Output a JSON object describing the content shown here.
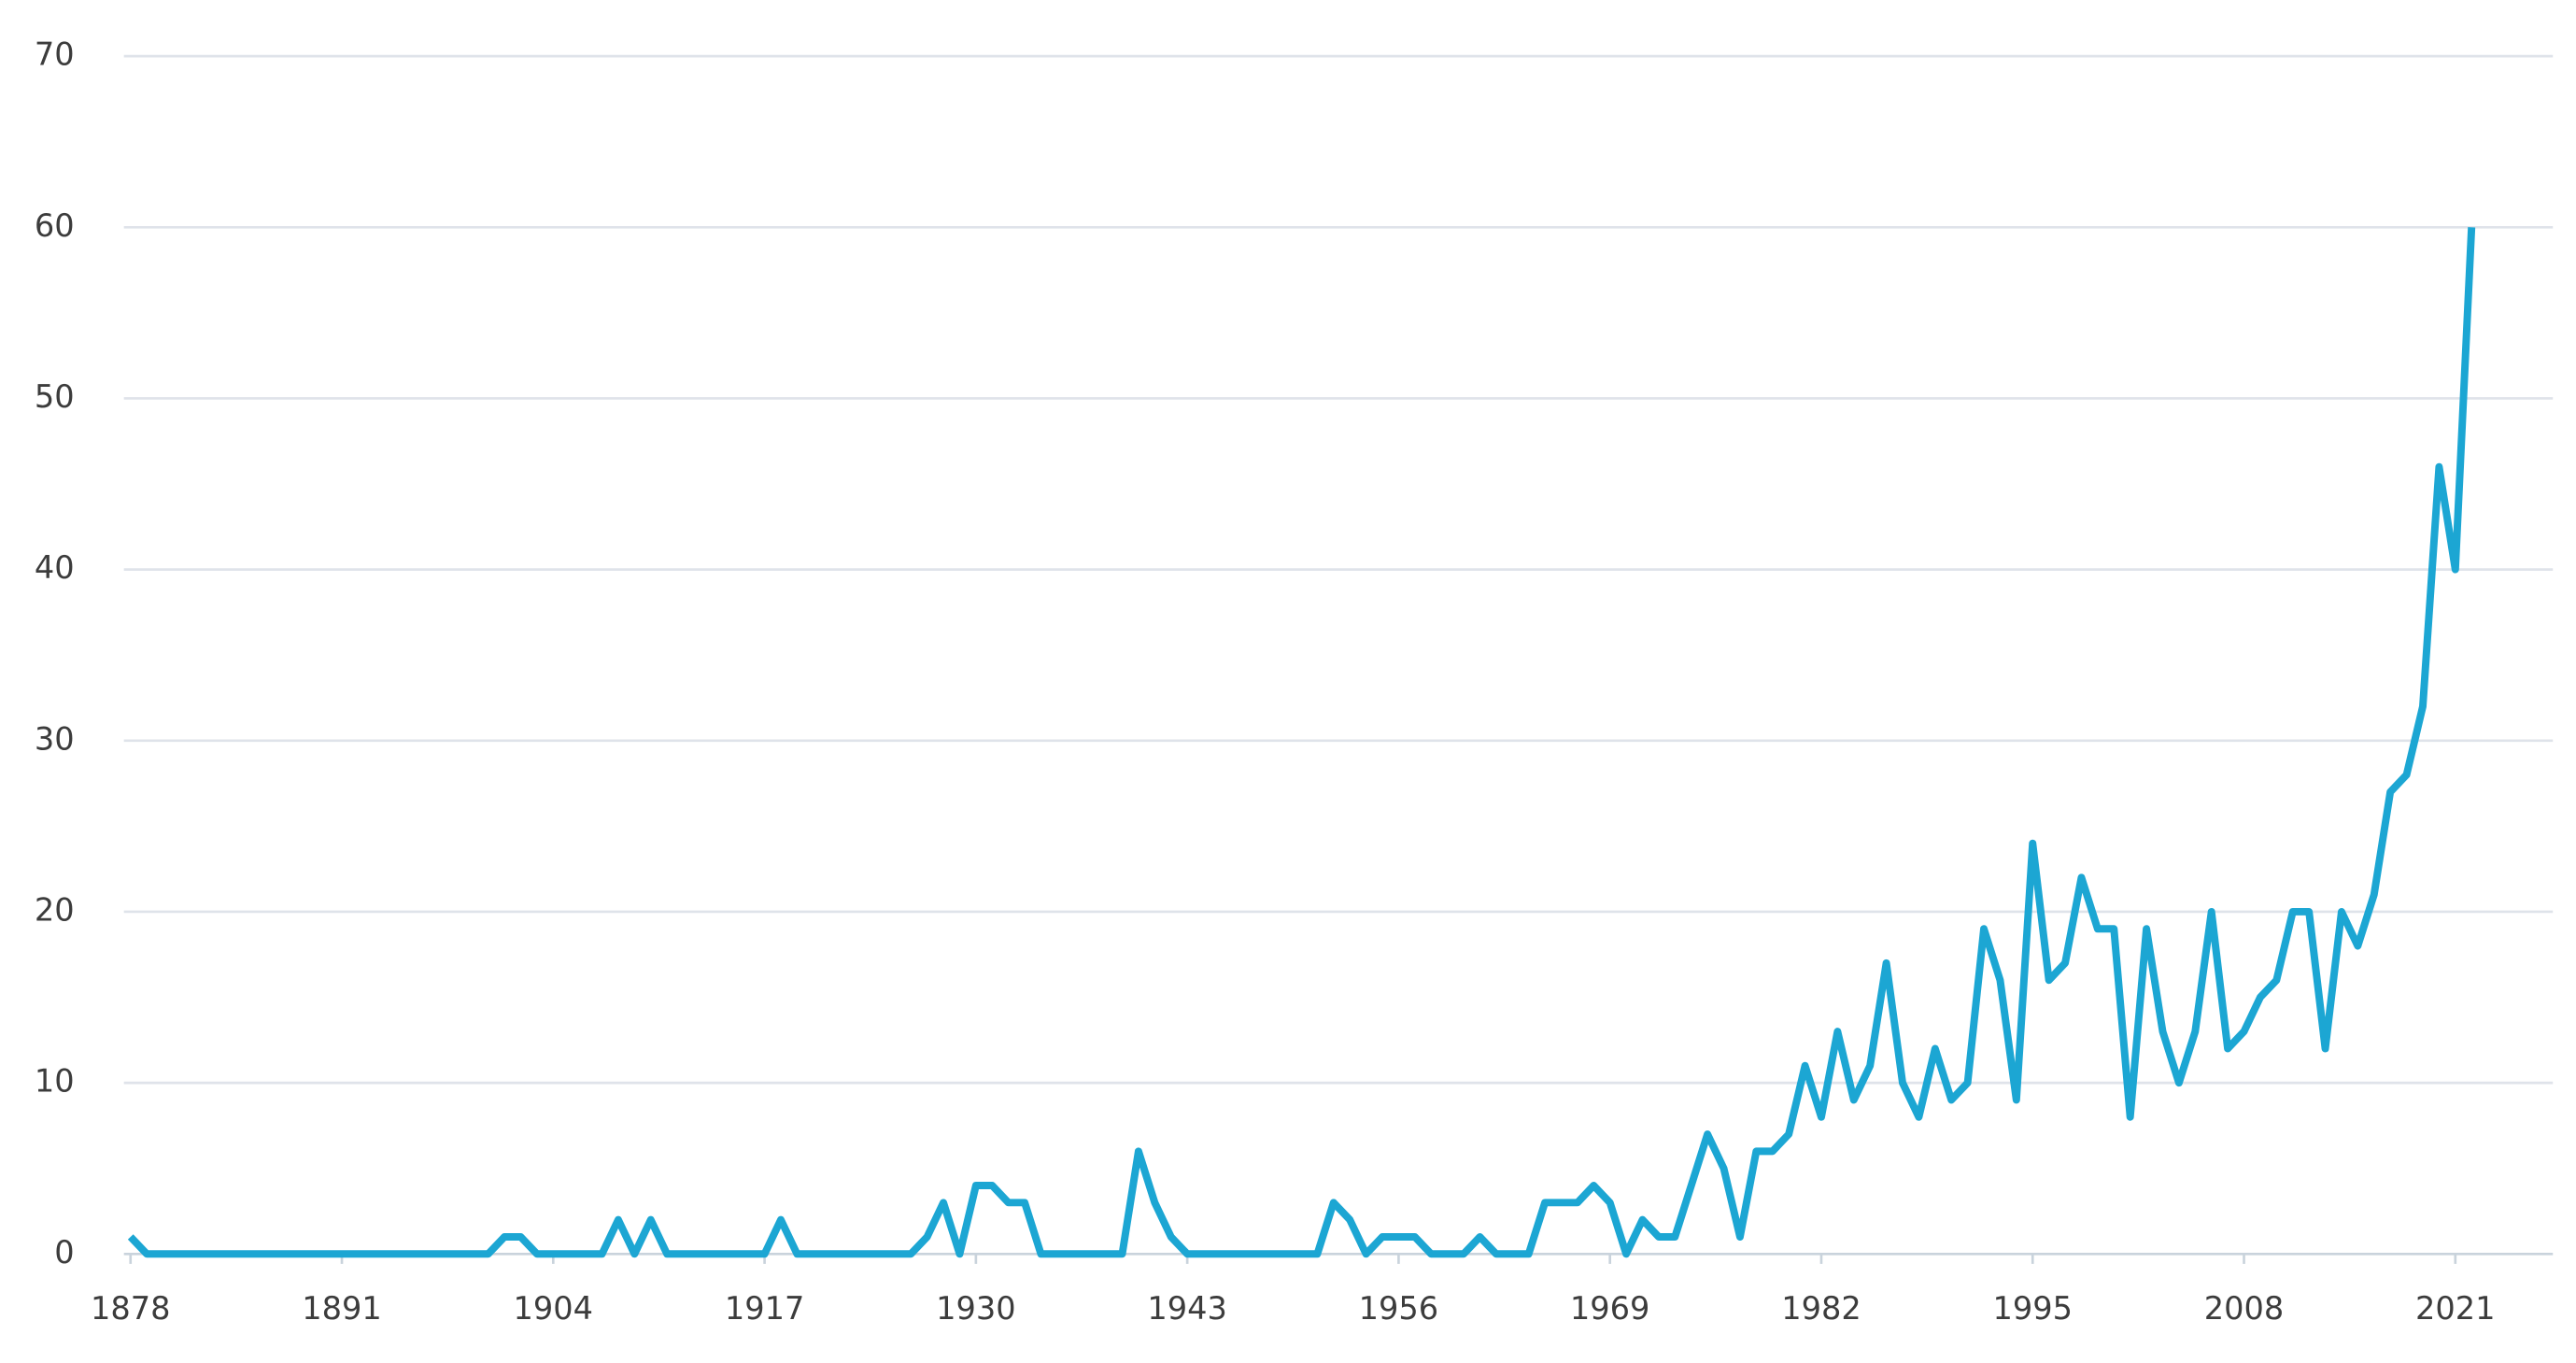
{
  "chart_data": {
    "type": "line",
    "x": [
      1878,
      1879,
      1880,
      1881,
      1882,
      1883,
      1884,
      1885,
      1886,
      1887,
      1888,
      1889,
      1890,
      1891,
      1892,
      1893,
      1894,
      1895,
      1896,
      1897,
      1898,
      1899,
      1900,
      1901,
      1902,
      1903,
      1904,
      1905,
      1906,
      1907,
      1908,
      1909,
      1910,
      1911,
      1912,
      1913,
      1914,
      1915,
      1916,
      1917,
      1918,
      1919,
      1920,
      1921,
      1922,
      1923,
      1924,
      1925,
      1926,
      1927,
      1928,
      1929,
      1930,
      1931,
      1932,
      1933,
      1934,
      1935,
      1936,
      1937,
      1938,
      1939,
      1940,
      1941,
      1942,
      1943,
      1944,
      1945,
      1946,
      1947,
      1948,
      1949,
      1950,
      1951,
      1952,
      1953,
      1954,
      1955,
      1956,
      1957,
      1958,
      1959,
      1960,
      1961,
      1962,
      1963,
      1964,
      1965,
      1966,
      1967,
      1968,
      1969,
      1970,
      1971,
      1972,
      1973,
      1974,
      1975,
      1976,
      1977,
      1978,
      1979,
      1980,
      1981,
      1982,
      1983,
      1984,
      1985,
      1986,
      1987,
      1988,
      1989,
      1990,
      1991,
      1992,
      1993,
      1994,
      1995,
      1996,
      1997,
      1998,
      1999,
      2000,
      2001,
      2002,
      2003,
      2004,
      2005,
      2006,
      2007,
      2008,
      2009,
      2010,
      2011,
      2012,
      2013,
      2014,
      2015,
      2016,
      2017,
      2018,
      2019,
      2020,
      2021,
      2022
    ],
    "series": [
      {
        "color": "#1ca6d3",
        "values": [
          1,
          0,
          0,
          0,
          0,
          0,
          0,
          0,
          0,
          0,
          0,
          0,
          0,
          0,
          0,
          0,
          0,
          0,
          0,
          0,
          0,
          0,
          0,
          1,
          1,
          0,
          0,
          0,
          0,
          0,
          2,
          0,
          2,
          0,
          0,
          0,
          0,
          0,
          0,
          0,
          2,
          0,
          0,
          0,
          0,
          0,
          0,
          0,
          0,
          1,
          3,
          0,
          4,
          4,
          3,
          3,
          0,
          0,
          0,
          0,
          0,
          0,
          6,
          3,
          1,
          0,
          0,
          0,
          0,
          0,
          0,
          0,
          0,
          0,
          3,
          2,
          0,
          1,
          1,
          1,
          0,
          0,
          0,
          1,
          0,
          0,
          0,
          3,
          3,
          3,
          4,
          3,
          0,
          2,
          1,
          1,
          4,
          7,
          5,
          1,
          6,
          6,
          7,
          11,
          8,
          13,
          9,
          11,
          17,
          10,
          8,
          12,
          9,
          10,
          19,
          16,
          9,
          24,
          16,
          17,
          22,
          19,
          19,
          8,
          19,
          13,
          10,
          13,
          20,
          12,
          13,
          15,
          16,
          20,
          20,
          12,
          20,
          18,
          21,
          27,
          28,
          32,
          46,
          40,
          60
        ]
      }
    ],
    "xlim": [
      1878,
      2027
    ],
    "xticks": [
      1878,
      1891,
      1904,
      1917,
      1930,
      1943,
      1956,
      1969,
      1982,
      1995,
      2008,
      2021
    ],
    "ylim": [
      0,
      70
    ],
    "yticks": [
      0,
      10,
      20,
      30,
      40,
      50,
      60,
      70
    ],
    "grid": true
  }
}
